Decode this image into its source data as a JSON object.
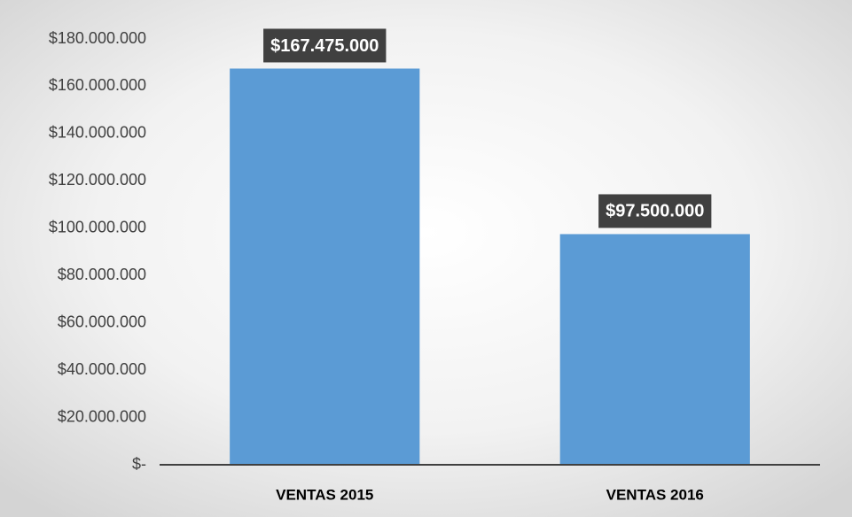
{
  "chart_data": {
    "type": "bar",
    "categories": [
      "VENTAS 2015",
      "VENTAS 2016"
    ],
    "values": [
      167475000,
      97500000
    ],
    "value_labels": [
      "$167.475.000",
      "$97.500.000"
    ],
    "color": "#5b9bd5",
    "ylim": [
      0,
      180000000
    ],
    "yticks": [
      {
        "value": 0,
        "label": "$-"
      },
      {
        "value": 20000000,
        "label": "$20.000.000"
      },
      {
        "value": 40000000,
        "label": "$40.000.000"
      },
      {
        "value": 60000000,
        "label": "$60.000.000"
      },
      {
        "value": 80000000,
        "label": "$80.000.000"
      },
      {
        "value": 100000000,
        "label": "$100.000.000"
      },
      {
        "value": 120000000,
        "label": "$120.000.000"
      },
      {
        "value": 140000000,
        "label": "$140.000.000"
      },
      {
        "value": 160000000,
        "label": "$160.000.000"
      },
      {
        "value": 180000000,
        "label": "$180.000.000"
      }
    ],
    "grid": false
  }
}
